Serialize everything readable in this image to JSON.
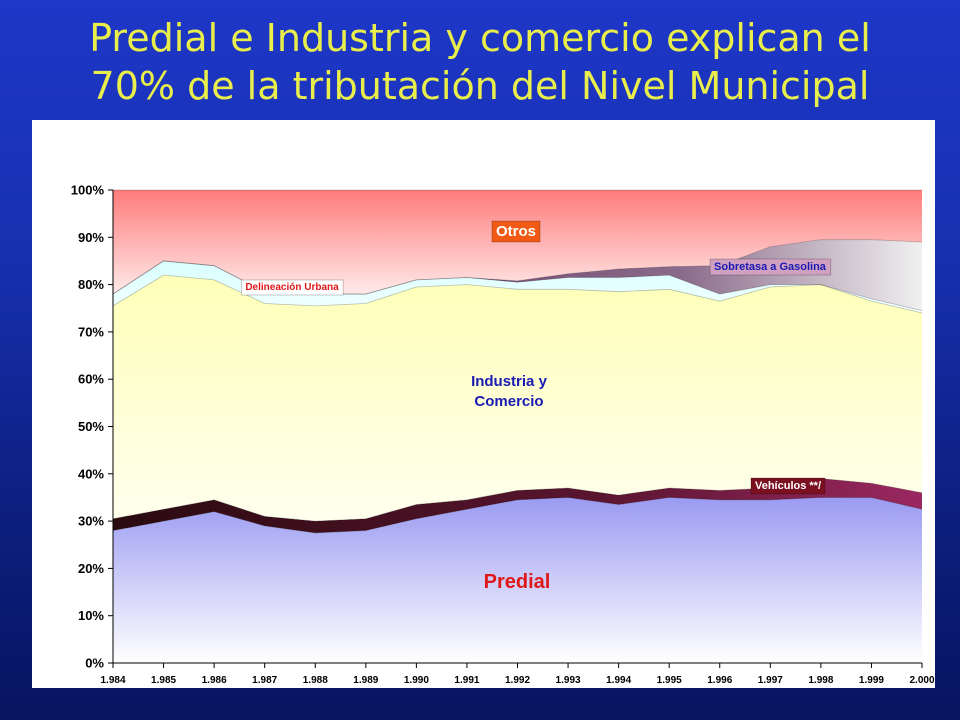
{
  "slide": {
    "title_line1": "Predial e Industria y comercio explican el",
    "title_line2": "70% de la tributación del Nivel Municipal"
  },
  "chart_data": {
    "type": "area",
    "stacked": true,
    "normalized_percent": true,
    "x": [
      "1.984",
      "1.985",
      "1.986",
      "1.987",
      "1.988",
      "1.989",
      "1.990",
      "1.991",
      "1.992",
      "1.993",
      "1.994",
      "1.995",
      "1.996",
      "1.997",
      "1.998",
      "1.999",
      "2.000"
    ],
    "y_ticks": [
      "0%",
      "10%",
      "20%",
      "30%",
      "40%",
      "50%",
      "60%",
      "70%",
      "80%",
      "90%",
      "100%"
    ],
    "ylim": [
      0,
      100
    ],
    "series": [
      {
        "name": "Predial",
        "color": "#9a9af0",
        "values": [
          28,
          30,
          32,
          29,
          27.5,
          28,
          30.5,
          32.5,
          34.5,
          35,
          33.5,
          35,
          34.5,
          34.5,
          35,
          35,
          32.5
        ]
      },
      {
        "name": "Vehículos **/",
        "color": "#7a1840",
        "values": [
          2.5,
          2.5,
          2.5,
          2,
          2.5,
          2.5,
          3,
          2,
          2,
          2,
          2,
          2,
          2,
          2.5,
          4,
          3,
          3.5
        ]
      },
      {
        "name": "Industria y Comercio",
        "color": "#ffffcc",
        "values": [
          45,
          49.5,
          46.5,
          45,
          45.5,
          45.5,
          46,
          45.5,
          42.5,
          42,
          43,
          42,
          40,
          42.5,
          41,
          38.5,
          38
        ]
      },
      {
        "name": "Delineación Urbana",
        "color": "#eaffff",
        "values": [
          2.5,
          3,
          3,
          2.5,
          2.5,
          2,
          1.5,
          1.5,
          1.5,
          2.5,
          3,
          3,
          1.5,
          0.5,
          0,
          0.5,
          0.5
        ]
      },
      {
        "name": "Sobretasa a Gasolina",
        "color": "#9a7a9a",
        "values": [
          0,
          0,
          0,
          0,
          0,
          0,
          0,
          0,
          0.3,
          0.8,
          1.8,
          1.8,
          6,
          8,
          9.5,
          12.5,
          14.5
        ]
      },
      {
        "name": "Otros",
        "color": "#ff8888",
        "values": [
          22,
          15,
          16,
          21.5,
          22,
          22,
          19,
          18.5,
          19.2,
          17.7,
          16.7,
          16.2,
          16,
          12,
          10.5,
          10.5,
          11
        ]
      }
    ],
    "grid": false,
    "legend": "inline"
  }
}
